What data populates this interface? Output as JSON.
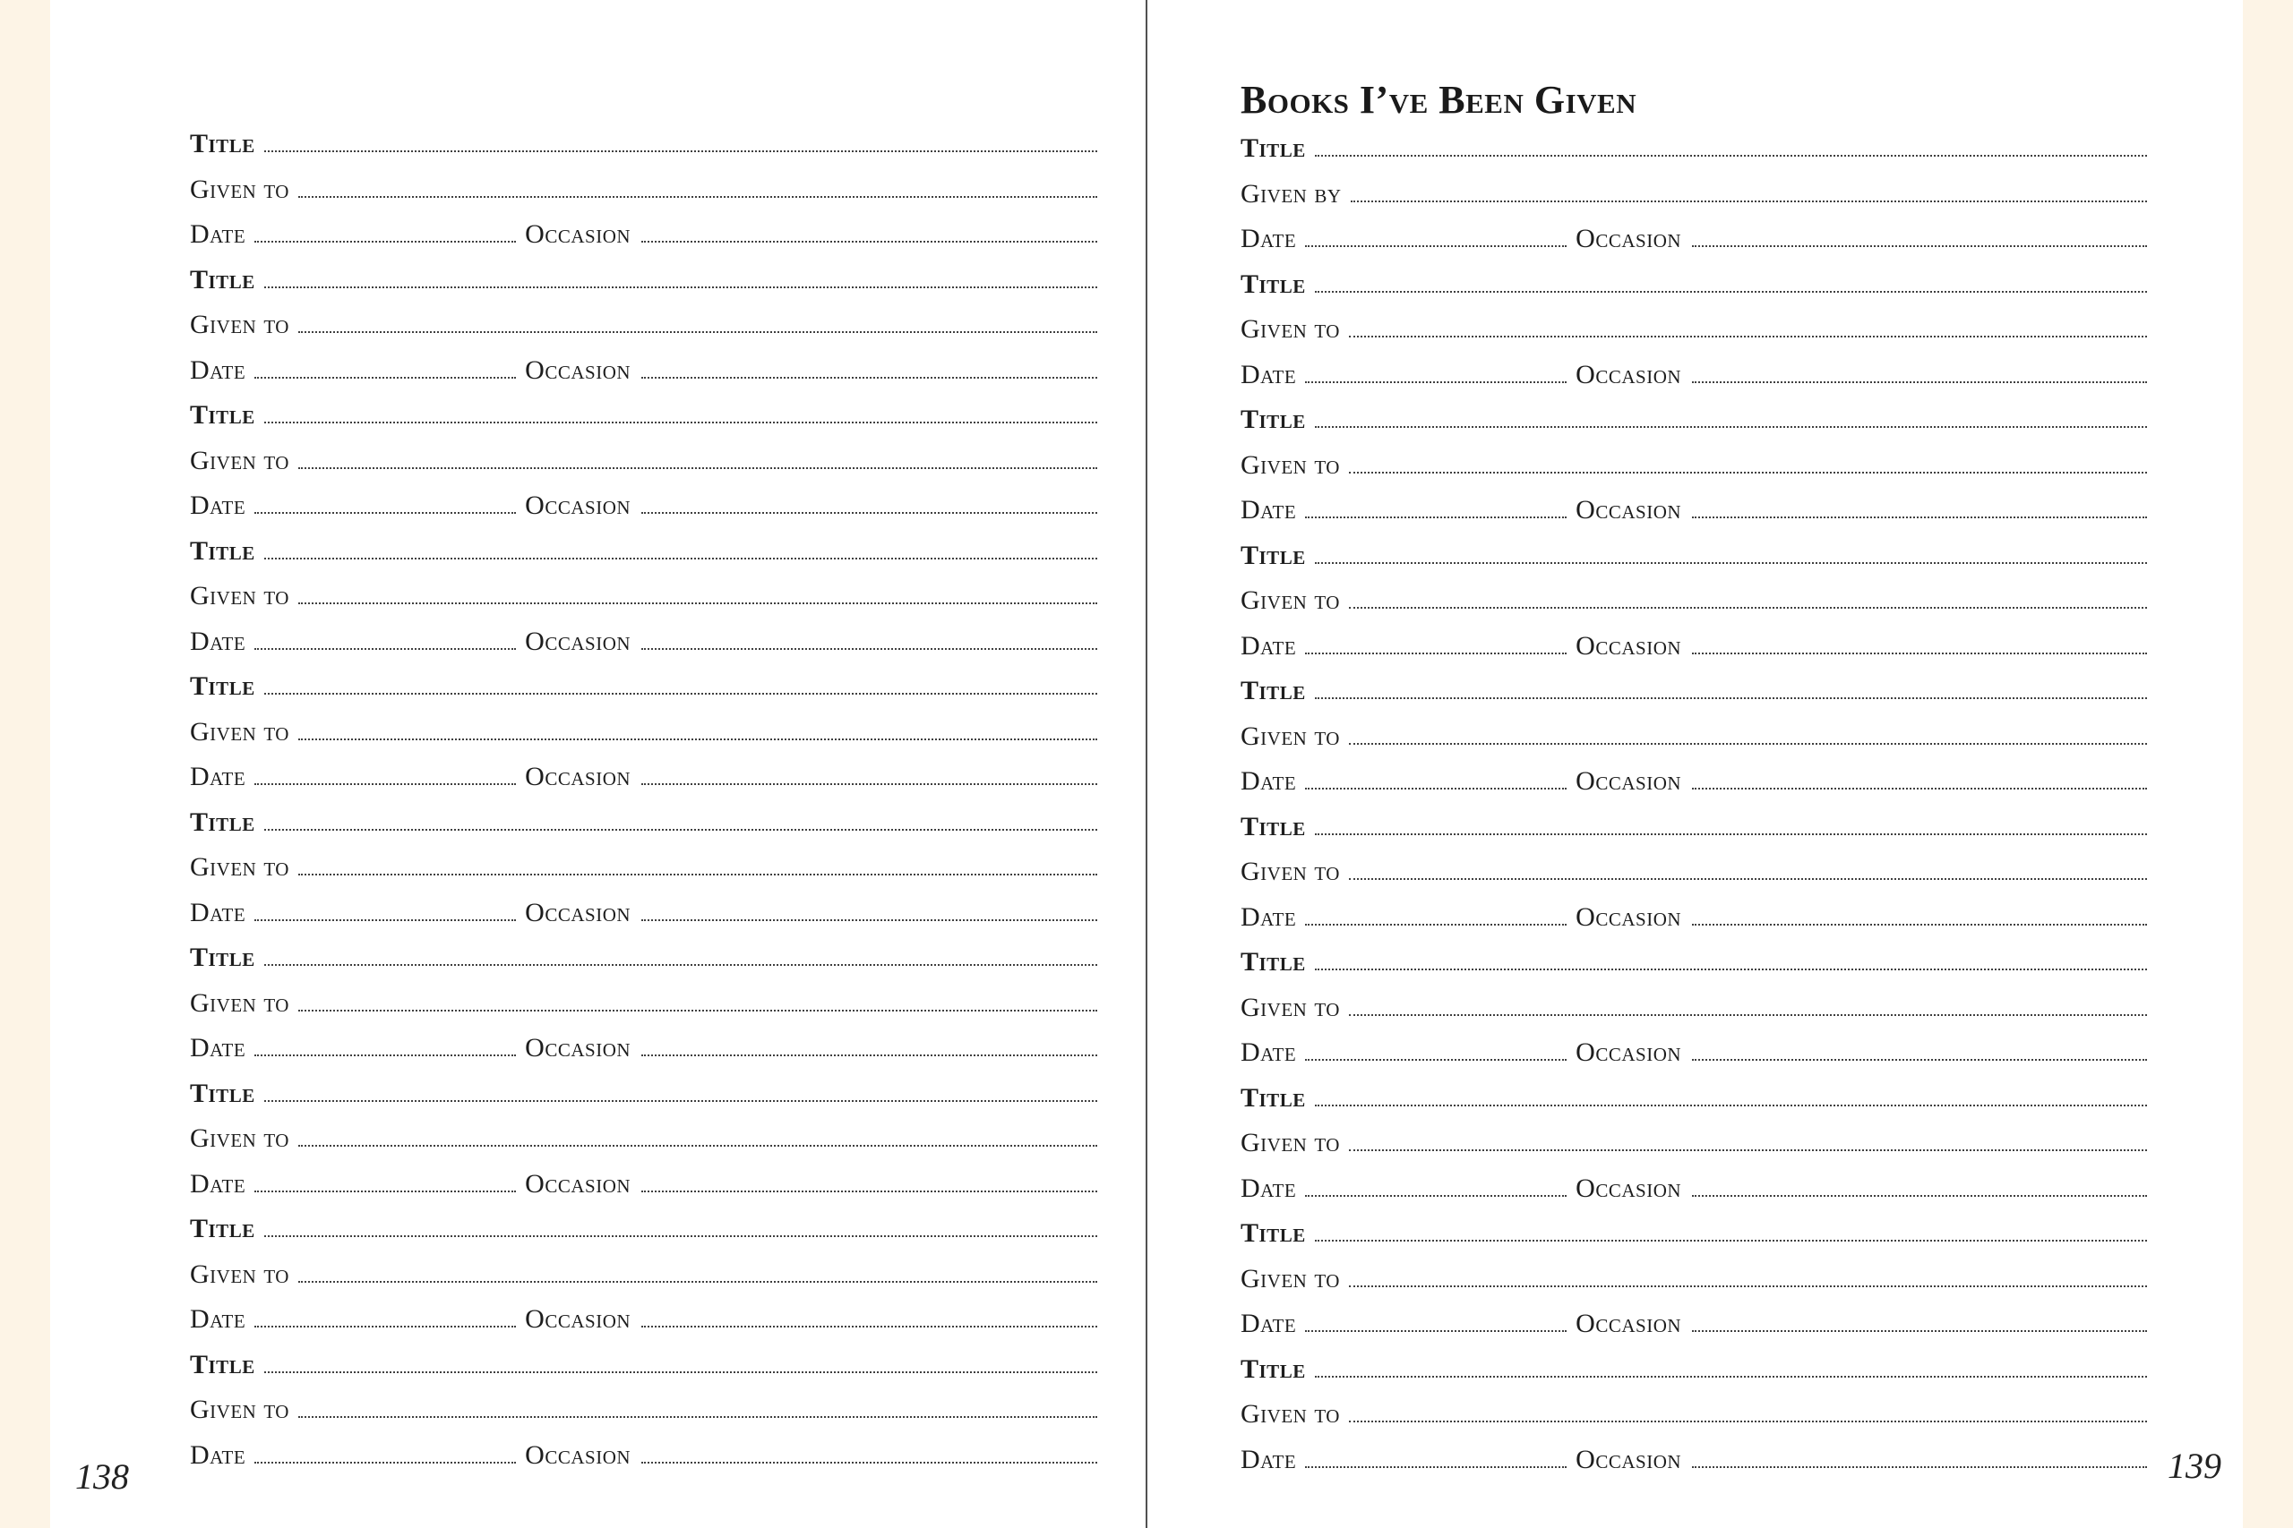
{
  "colors": {
    "paper": "#ffffff",
    "paper_edge": "#fdf4e6",
    "ink": "#1d1d1d",
    "leader_dots": "#3f3f3f",
    "spine_divider": "#515151"
  },
  "labels": {
    "title": "Title",
    "date": "Date",
    "occasion": "Occasion"
  },
  "left_page": {
    "page_number": "138",
    "entries": [
      {
        "given_label": "Given to"
      },
      {
        "given_label": "Given to"
      },
      {
        "given_label": "Given to"
      },
      {
        "given_label": "Given to"
      },
      {
        "given_label": "Given to"
      },
      {
        "given_label": "Given to"
      },
      {
        "given_label": "Given to"
      },
      {
        "given_label": "Given to"
      },
      {
        "given_label": "Given to"
      },
      {
        "given_label": "Given to"
      }
    ]
  },
  "right_page": {
    "heading": "Books I’ve Been Given",
    "page_number": "139",
    "entries": [
      {
        "given_label": "Given by"
      },
      {
        "given_label": "Given to"
      },
      {
        "given_label": "Given to"
      },
      {
        "given_label": "Given to"
      },
      {
        "given_label": "Given to"
      },
      {
        "given_label": "Given to"
      },
      {
        "given_label": "Given to"
      },
      {
        "given_label": "Given to"
      },
      {
        "given_label": "Given to"
      },
      {
        "given_label": "Given to"
      }
    ]
  }
}
